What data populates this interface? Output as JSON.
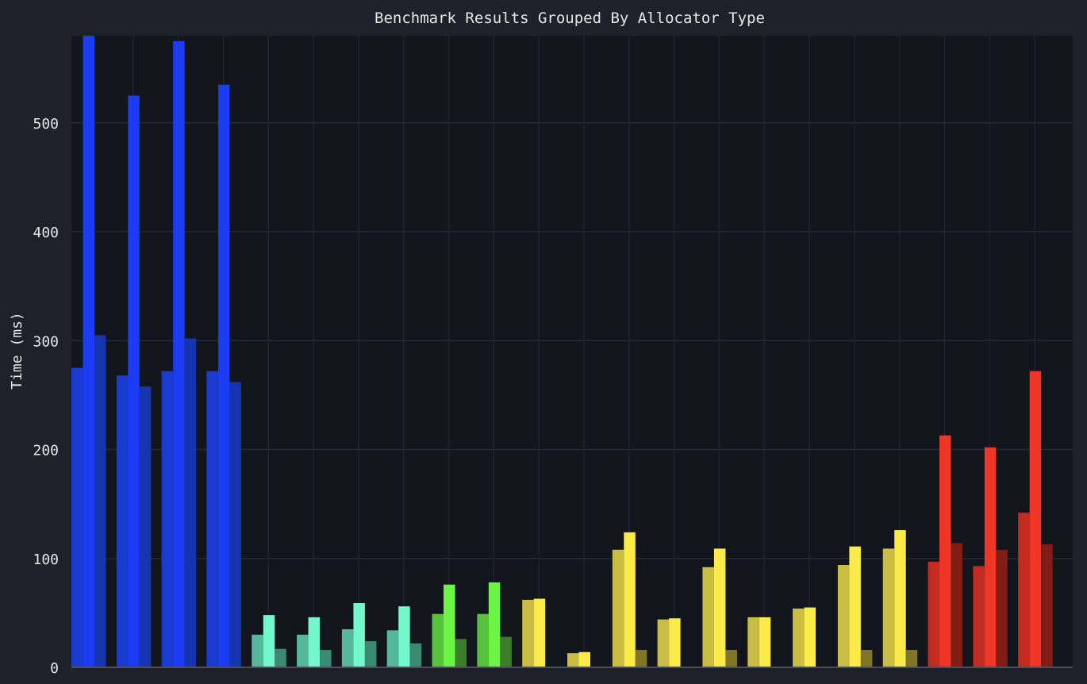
{
  "chart_data": {
    "type": "bar",
    "title": "Benchmark Results Grouped By Allocator Type",
    "xlabel": "",
    "ylabel": "Time (ms)",
    "ylim": [
      0,
      580
    ],
    "yticks": [
      0,
      100,
      200,
      300,
      400,
      500
    ],
    "grid": true,
    "legend": "none",
    "groups": [
      {
        "values": [
          275,
          580,
          305
        ],
        "colors": [
          "#1a3bd0",
          "#1b3cf2",
          "#1633b0"
        ]
      },
      {
        "values": [
          268,
          525,
          258
        ],
        "colors": [
          "#1a3bd0",
          "#1b3cf2",
          "#1633b0"
        ]
      },
      {
        "values": [
          272,
          575,
          302
        ],
        "colors": [
          "#1a3bd0",
          "#1b3cf2",
          "#1633b0"
        ]
      },
      {
        "values": [
          272,
          535,
          262
        ],
        "colors": [
          "#1a3bd0",
          "#1b3cf2",
          "#1633b0"
        ]
      },
      {
        "values": [
          30,
          48,
          17
        ],
        "colors": [
          "#56b89a",
          "#73f7cb",
          "#3a8a72"
        ]
      },
      {
        "values": [
          30,
          46,
          16
        ],
        "colors": [
          "#56b89a",
          "#73f7cb",
          "#3a8a72"
        ]
      },
      {
        "values": [
          35,
          59,
          24
        ],
        "colors": [
          "#56b89a",
          "#73f7cb",
          "#3a8a72"
        ]
      },
      {
        "values": [
          34,
          56,
          22
        ],
        "colors": [
          "#56b89a",
          "#73f7cb",
          "#3a8a72"
        ]
      },
      {
        "values": [
          49,
          76,
          26
        ],
        "colors": [
          "#56c23c",
          "#6cf544",
          "#3a7e2a"
        ]
      },
      {
        "values": [
          49,
          78,
          28
        ],
        "colors": [
          "#56c23c",
          "#6cf544",
          "#3a7e2a"
        ]
      },
      {
        "values": [
          62,
          63,
          0
        ],
        "colors": [
          "#c9bd44",
          "#fbeb49",
          "#807628"
        ]
      },
      {
        "values": [
          13,
          14,
          0
        ],
        "colors": [
          "#c9bd44",
          "#fbeb49",
          "#807628"
        ]
      },
      {
        "values": [
          108,
          124,
          16
        ],
        "colors": [
          "#c9bd44",
          "#fbeb49",
          "#807628"
        ]
      },
      {
        "values": [
          44,
          45,
          0
        ],
        "colors": [
          "#c9bd44",
          "#fbeb49",
          "#807628"
        ]
      },
      {
        "values": [
          92,
          109,
          16
        ],
        "colors": [
          "#c9bd44",
          "#fbeb49",
          "#807628"
        ]
      },
      {
        "values": [
          46,
          46,
          0
        ],
        "colors": [
          "#c9bd44",
          "#fbeb49",
          "#807628"
        ]
      },
      {
        "values": [
          54,
          55,
          0
        ],
        "colors": [
          "#c9bd44",
          "#fbeb49",
          "#807628"
        ]
      },
      {
        "values": [
          94,
          111,
          16
        ],
        "colors": [
          "#c9bd44",
          "#fbeb49",
          "#807628"
        ]
      },
      {
        "values": [
          109,
          126,
          16
        ],
        "colors": [
          "#c9bd44",
          "#fbeb49",
          "#807628"
        ]
      },
      {
        "values": [
          97,
          213,
          114
        ],
        "colors": [
          "#c32b20",
          "#ef3526",
          "#801d15"
        ]
      },
      {
        "values": [
          93,
          202,
          108
        ],
        "colors": [
          "#c32b20",
          "#ef3526",
          "#801d15"
        ]
      },
      {
        "values": [
          142,
          272,
          113
        ],
        "colors": [
          "#c32b20",
          "#ef3526",
          "#801d15"
        ]
      }
    ]
  }
}
